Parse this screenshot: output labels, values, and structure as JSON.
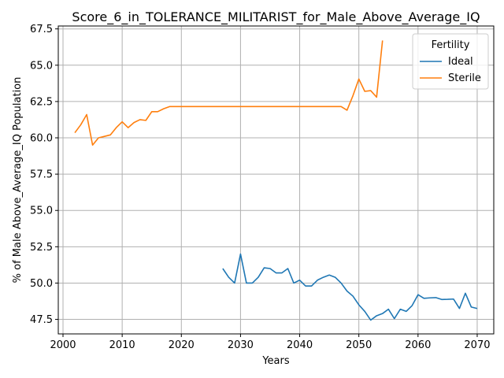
{
  "chart_data": {
    "type": "line",
    "title": "Score_6_in_TOLERANCE_MILITARIST_for_Male_Above_Average_IQ",
    "xlabel": "Years",
    "ylabel": "% of Male Above_Average_IQ Population",
    "xlim": [
      1999.2,
      2072.8
    ],
    "ylim": [
      46.5,
      67.7
    ],
    "xticks": [
      2000,
      2010,
      2020,
      2030,
      2040,
      2050,
      2060,
      2070
    ],
    "xtick_labels": [
      "2000",
      "2010",
      "2020",
      "2030",
      "2040",
      "2050",
      "2060",
      "2070"
    ],
    "yticks": [
      47.5,
      50.0,
      52.5,
      55.0,
      57.5,
      60.0,
      62.5,
      65.0,
      67.5
    ],
    "ytick_labels": [
      "47.5",
      "50.0",
      "52.5",
      "55.0",
      "57.5",
      "60.0",
      "62.5",
      "65.0",
      "67.5"
    ],
    "grid": true,
    "legend": {
      "title": "Fertility",
      "placement": "top-right"
    },
    "series": [
      {
        "name": "Ideal",
        "color": "#1f77b4",
        "x": [
          2027,
          2028,
          2029,
          2030,
          2031,
          2032,
          2033,
          2034,
          2035,
          2036,
          2037,
          2038,
          2039,
          2040,
          2041,
          2042,
          2043,
          2044,
          2045,
          2046,
          2047,
          2048,
          2049,
          2050,
          2051,
          2052,
          2053,
          2054,
          2055,
          2056,
          2057,
          2058,
          2059,
          2060,
          2061,
          2062,
          2063,
          2064,
          2065,
          2066,
          2067,
          2068,
          2069,
          2070
        ],
        "values": [
          51.0,
          50.4,
          50.0,
          52.0,
          50.0,
          50.0,
          50.4,
          51.05,
          51.0,
          50.7,
          50.7,
          51.0,
          50.0,
          50.2,
          49.8,
          49.8,
          50.2,
          50.4,
          50.55,
          50.4,
          50.0,
          49.45,
          49.1,
          48.5,
          48.05,
          47.45,
          47.75,
          47.9,
          48.2,
          47.55,
          48.2,
          48.05,
          48.45,
          49.2,
          48.95,
          48.98,
          49.0,
          48.87,
          48.88,
          48.9,
          48.25,
          49.3,
          48.35,
          48.25
        ]
      },
      {
        "name": "Sterile",
        "color": "#ff7f0e",
        "x": [
          2002,
          2003,
          2004,
          2005,
          2006,
          2007,
          2008,
          2009,
          2010,
          2011,
          2012,
          2013,
          2014,
          2015,
          2016,
          2017,
          2018,
          2019,
          2020,
          2021,
          2022,
          2023,
          2024,
          2025,
          2026,
          2027,
          2028,
          2029,
          2030,
          2031,
          2032,
          2033,
          2034,
          2035,
          2036,
          2037,
          2038,
          2039,
          2040,
          2041,
          2042,
          2043,
          2044,
          2045,
          2046,
          2047,
          2048,
          2049,
          2050,
          2051,
          2052,
          2053,
          2054
        ],
        "values": [
          60.35,
          60.9,
          61.6,
          59.5,
          60.0,
          60.1,
          60.2,
          60.7,
          61.1,
          60.7,
          61.05,
          61.25,
          61.2,
          61.8,
          61.8,
          62.0,
          62.15,
          62.15,
          62.15,
          62.15,
          62.15,
          62.15,
          62.15,
          62.15,
          62.15,
          62.15,
          62.15,
          62.15,
          62.15,
          62.15,
          62.15,
          62.15,
          62.15,
          62.15,
          62.15,
          62.15,
          62.15,
          62.15,
          62.15,
          62.15,
          62.15,
          62.15,
          62.15,
          62.15,
          62.15,
          62.15,
          61.9,
          62.9,
          64.05,
          63.2,
          63.25,
          62.8,
          66.7
        ]
      }
    ]
  }
}
